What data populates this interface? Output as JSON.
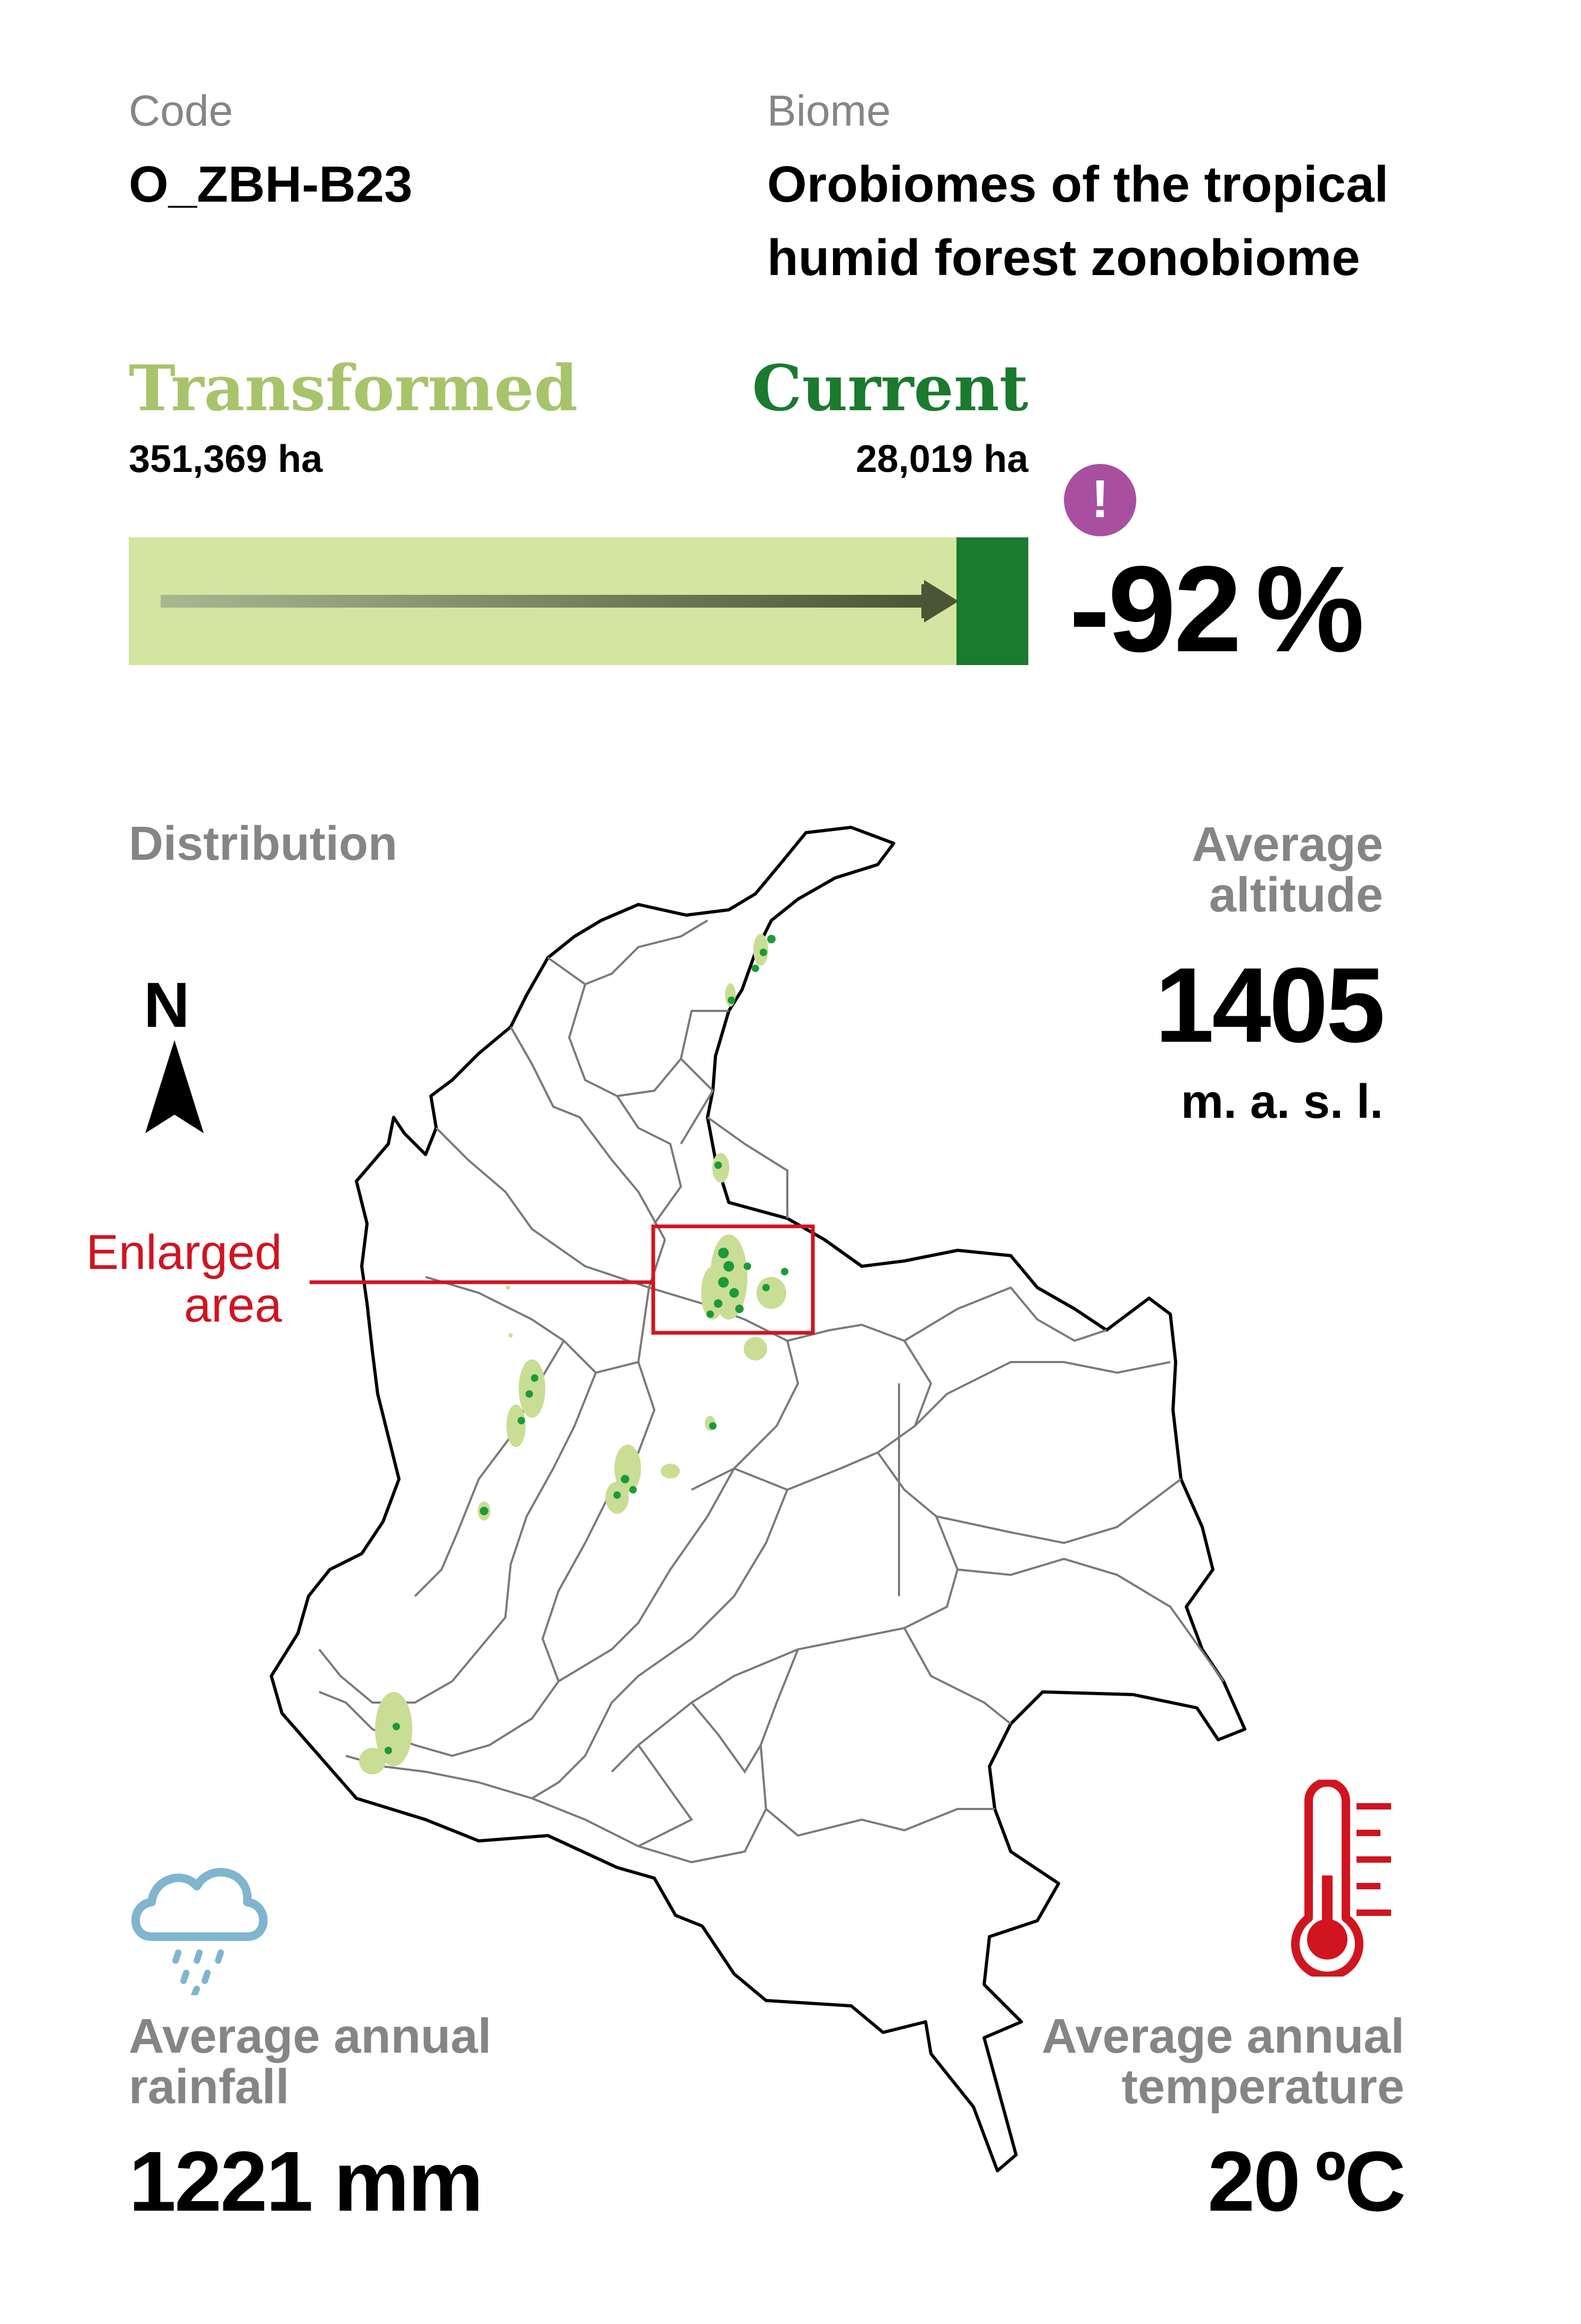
{
  "header": {
    "code_label": "Code",
    "code_value": "O_ZBH-B23",
    "biome_label": "Biome",
    "biome_value_line1": "Orobiomes of the tropical",
    "biome_value_line2": "humid forest zonobiome"
  },
  "comparison": {
    "transformed_label": "Transformed",
    "transformed_value": "351,369 ha",
    "current_label": "Current",
    "current_value": "28,019 ha",
    "change_value": "-92",
    "change_unit": "%",
    "current_fraction": 0.0797,
    "alert_symbol": "!",
    "alert_icon": "exclamation-circle-icon",
    "colors": {
      "transformed": "#a7c46b",
      "transformed_fill": "#d4e4a1",
      "current": "#1a7a2e",
      "alert": "#a8509f"
    }
  },
  "distribution": {
    "label": "Distribution",
    "north_label": "N",
    "north_icon": "north-arrow-icon",
    "enlarged_label_line1": "Enlarged",
    "enlarged_label_line2": "area",
    "enlarged_color": "#d01420"
  },
  "altitude": {
    "label_line1": "Average",
    "label_line2": "altitude",
    "value": "1405",
    "unit": "m. a. s. l."
  },
  "rainfall": {
    "icon": "rain-cloud-icon",
    "label_line1": "Average annual",
    "label_line2": "rainfall",
    "value": "1221 mm",
    "icon_color": "#7fb5cf"
  },
  "temperature": {
    "icon": "thermometer-icon",
    "label_line1": "Average annual",
    "label_line2": "temperature",
    "value": "20",
    "unit": "ºC",
    "icon_color": "#d01420"
  }
}
